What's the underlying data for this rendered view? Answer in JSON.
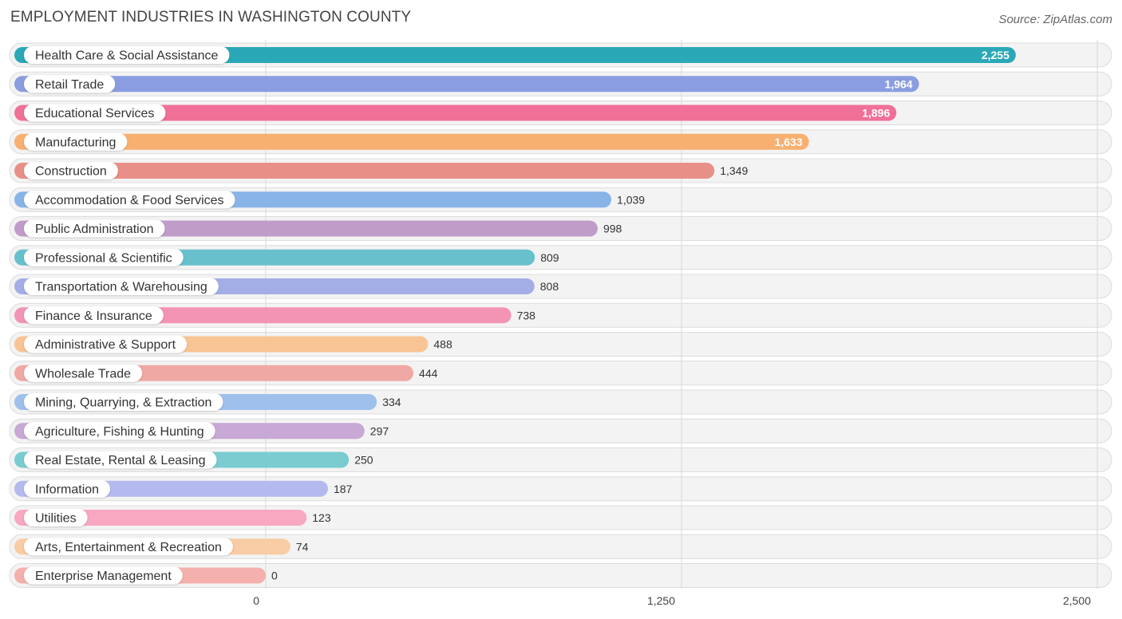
{
  "header": {
    "title": "EMPLOYMENT INDUSTRIES IN WASHINGTON COUNTY",
    "source": "Source: ZipAtlas.com"
  },
  "chart_data": {
    "type": "bar",
    "orientation": "horizontal",
    "title": "EMPLOYMENT INDUSTRIES IN WASHINGTON COUNTY",
    "xlabel": "",
    "ylabel": "",
    "xlim": [
      0,
      2500
    ],
    "ticks": [
      {
        "value": 0,
        "label": "0"
      },
      {
        "value": 1250,
        "label": "1,250"
      },
      {
        "value": 2500,
        "label": "2,500"
      }
    ],
    "grid": true,
    "categories": [
      "Health Care & Social Assistance",
      "Retail Trade",
      "Educational Services",
      "Manufacturing",
      "Construction",
      "Accommodation & Food Services",
      "Public Administration",
      "Professional & Scientific",
      "Transportation & Warehousing",
      "Finance & Insurance",
      "Administrative & Support",
      "Wholesale Trade",
      "Mining, Quarrying, & Extraction",
      "Agriculture, Fishing & Hunting",
      "Real Estate, Rental & Leasing",
      "Information",
      "Utilities",
      "Arts, Entertainment & Recreation",
      "Enterprise Management"
    ],
    "values": [
      2255,
      1964,
      1896,
      1633,
      1349,
      1039,
      998,
      809,
      808,
      738,
      488,
      444,
      334,
      297,
      250,
      187,
      123,
      74,
      0
    ],
    "value_labels": [
      "2,255",
      "1,964",
      "1,896",
      "1,633",
      "1,349",
      "1,039",
      "998",
      "809",
      "808",
      "738",
      "488",
      "444",
      "334",
      "297",
      "250",
      "187",
      "123",
      "74",
      "0"
    ],
    "colors": [
      "#2aa8b8",
      "#8a9de0",
      "#f07098",
      "#f8b070",
      "#e89088",
      "#88b4e8",
      "#c09cc8",
      "#68c0cc",
      "#a4aee6",
      "#f494b4",
      "#f8c494",
      "#f0a8a4",
      "#a0c0ec",
      "#c8a8d4",
      "#7accd0",
      "#b4baee",
      "#f8a8c0",
      "#f8cca4",
      "#f4b0ac"
    ]
  }
}
